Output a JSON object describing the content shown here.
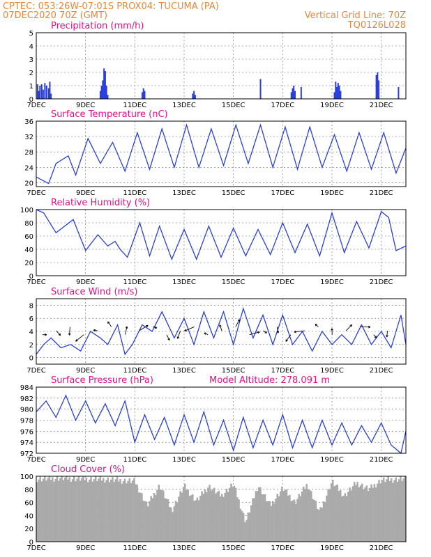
{
  "header": {
    "line1_left": "CPTEC:    053:26W-07:01S   PROX04: TUCUMA (PA)",
    "line2_left": "07DEC2020 70Z (GMT)",
    "line2_right": "Vertical Grid Line: 70Z",
    "line3_right": "TQ0126L028"
  },
  "colors": {
    "series": "#2a3ee0",
    "title": "#e0128a",
    "header": "#e8873a",
    "cloud": "#aaaaaa"
  },
  "x_axis": {
    "tick_labels": [
      "7DEC",
      "9DEC",
      "11DEC",
      "13DEC",
      "15DEC",
      "17DEC",
      "19DEC",
      "21DEC"
    ],
    "tick_days": [
      0,
      2,
      4,
      6,
      8,
      10,
      12,
      14
    ],
    "range_days": [
      0,
      15
    ]
  },
  "chart_data": [
    {
      "type": "bar",
      "title": "Precipitation (mm/h)",
      "ylim": [
        0,
        5
      ],
      "yticks": [
        "0",
        "1",
        "2",
        "3",
        "4",
        "5"
      ],
      "x_unit": "days since 7DEC",
      "bars": [
        [
          0.05,
          1.1
        ],
        [
          0.1,
          0.6
        ],
        [
          0.15,
          1.0
        ],
        [
          0.22,
          1.1
        ],
        [
          0.28,
          0.7
        ],
        [
          0.35,
          1.2
        ],
        [
          0.42,
          1.0
        ],
        [
          0.5,
          0.8
        ],
        [
          0.55,
          1.3
        ],
        [
          0.6,
          0.4
        ],
        [
          2.6,
          0.6
        ],
        [
          2.65,
          1.0
        ],
        [
          2.7,
          1.4
        ],
        [
          2.75,
          2.3
        ],
        [
          2.8,
          2.1
        ],
        [
          2.85,
          1.0
        ],
        [
          2.9,
          0.3
        ],
        [
          4.3,
          0.5
        ],
        [
          4.35,
          0.8
        ],
        [
          4.4,
          0.6
        ],
        [
          6.35,
          0.4
        ],
        [
          6.4,
          0.6
        ],
        [
          6.45,
          0.3
        ],
        [
          9.1,
          1.5
        ],
        [
          10.35,
          0.5
        ],
        [
          10.4,
          0.8
        ],
        [
          10.45,
          1.0
        ],
        [
          10.5,
          0.6
        ],
        [
          10.75,
          0.9
        ],
        [
          12.1,
          0.5
        ],
        [
          12.15,
          1.3
        ],
        [
          12.2,
          0.9
        ],
        [
          12.25,
          1.2
        ],
        [
          12.3,
          1.0
        ],
        [
          12.35,
          0.6
        ],
        [
          13.8,
          1.8
        ],
        [
          13.85,
          2.0
        ],
        [
          13.9,
          1.4
        ],
        [
          14.7,
          0.9
        ]
      ]
    },
    {
      "type": "line",
      "title": "Surface Temperature (nC)",
      "ylim": [
        19,
        36
      ],
      "yticks": [
        20,
        24,
        28,
        32,
        36
      ],
      "x": [
        0,
        0.5,
        0.8,
        1.3,
        1.6,
        2.1,
        2.6,
        3.1,
        3.6,
        4.1,
        4.6,
        5.1,
        5.6,
        6.1,
        6.6,
        7.1,
        7.6,
        8.1,
        8.6,
        9.1,
        9.6,
        10.1,
        10.6,
        11.1,
        11.6,
        12.1,
        12.6,
        13.1,
        13.6,
        14.1,
        14.6,
        15
      ],
      "y": [
        21.5,
        19.8,
        25,
        27,
        22,
        31.5,
        25,
        30.5,
        23,
        33,
        23.5,
        34,
        24,
        35,
        24,
        34,
        24.5,
        35,
        25,
        35,
        24,
        34.5,
        23.5,
        34.5,
        24,
        32.5,
        23,
        33,
        23.5,
        33,
        22.5,
        29
      ]
    },
    {
      "type": "line",
      "title": "Relative Humidity (%)",
      "ylim": [
        0,
        100
      ],
      "yticks": [
        0,
        20,
        40,
        60,
        80,
        100
      ],
      "x": [
        0,
        0.3,
        0.8,
        1.5,
        2,
        2.5,
        2.9,
        3.2,
        3.4,
        3.7,
        4.2,
        4.6,
        5.0,
        5.5,
        6.0,
        6.5,
        7.0,
        7.5,
        8.0,
        8.5,
        9.0,
        9.5,
        10.0,
        10.5,
        11.0,
        11.5,
        12.0,
        12.5,
        13.0,
        13.5,
        14.0,
        14.3,
        14.6,
        15
      ],
      "y": [
        100,
        95,
        65,
        85,
        38,
        62,
        45,
        52,
        40,
        28,
        80,
        30,
        75,
        25,
        70,
        25,
        75,
        28,
        72,
        30,
        70,
        32,
        80,
        35,
        78,
        30,
        95,
        35,
        82,
        42,
        97,
        88,
        38,
        45
      ]
    },
    {
      "type": "line",
      "title": "Surface Wind (m/s)",
      "ylim": [
        -1,
        9
      ],
      "yticks": [
        0,
        2,
        4,
        6,
        8
      ],
      "x": [
        0,
        0.3,
        0.6,
        1,
        1.4,
        1.8,
        2.2,
        2.6,
        2.9,
        3.3,
        3.6,
        3.9,
        4.3,
        4.7,
        5.1,
        5.6,
        6.0,
        6.4,
        6.8,
        7.2,
        7.6,
        8.0,
        8.4,
        8.8,
        9.2,
        9.6,
        10.0,
        10.4,
        10.8,
        11.2,
        11.6,
        12.0,
        12.4,
        12.8,
        13.2,
        13.6,
        14.0,
        14.4,
        14.8,
        15
      ],
      "y": [
        0.5,
        2,
        3,
        1.5,
        2,
        1,
        4,
        3,
        2,
        5,
        0.5,
        2,
        5,
        4,
        7,
        3,
        6,
        2,
        7,
        3,
        7,
        2,
        7.5,
        3,
        6.5,
        2,
        6.5,
        2,
        4,
        1,
        4,
        2,
        3.5,
        2,
        5,
        2,
        4,
        1.5,
        6.5,
        2
      ],
      "vectors_note": "wind direction arrows"
    },
    {
      "type": "line",
      "title": "Surface Pressure (hPa)",
      "annotation": "Model Altitude: 278.091  m",
      "ylim": [
        972,
        984
      ],
      "yticks": [
        972,
        974,
        976,
        978,
        980,
        982,
        984
      ],
      "x": [
        0,
        0.4,
        0.8,
        1.2,
        1.6,
        2.0,
        2.4,
        2.8,
        3.2,
        3.6,
        4.0,
        4.4,
        4.8,
        5.2,
        5.6,
        6.0,
        6.4,
        6.8,
        7.2,
        7.6,
        8.0,
        8.4,
        8.8,
        9.2,
        9.6,
        10.0,
        10.4,
        10.8,
        11.2,
        11.6,
        12.0,
        12.4,
        12.8,
        13.2,
        13.6,
        14.0,
        14.4,
        14.8,
        15
      ],
      "y": [
        979.5,
        981.5,
        978.5,
        982.5,
        978,
        981.5,
        977.5,
        981,
        977,
        981.5,
        974,
        979,
        974.5,
        978.5,
        973.5,
        979,
        974,
        979.5,
        973.5,
        978,
        972.5,
        978.5,
        973,
        978,
        973.5,
        979,
        973,
        978,
        973,
        978,
        973.5,
        977.5,
        973.5,
        977,
        974,
        977.5,
        973.5,
        972,
        976
      ]
    },
    {
      "type": "bar",
      "title": "Cloud Cover (%)",
      "ylim": [
        0,
        100
      ],
      "yticks": [
        0,
        20,
        40,
        60,
        80,
        100
      ],
      "x_unit": "days since 7DEC",
      "bars_profile": [
        [
          0,
          96
        ],
        [
          1,
          97
        ],
        [
          2,
          96
        ],
        [
          3,
          95
        ],
        [
          4,
          92
        ],
        [
          4.5,
          55
        ],
        [
          5,
          86
        ],
        [
          5.5,
          48
        ],
        [
          6,
          85
        ],
        [
          6.5,
          62
        ],
        [
          7,
          85
        ],
        [
          7.5,
          70
        ],
        [
          8,
          88
        ],
        [
          8.5,
          30
        ],
        [
          9,
          86
        ],
        [
          9.5,
          55
        ],
        [
          10,
          82
        ],
        [
          10.5,
          60
        ],
        [
          11,
          88
        ],
        [
          11.5,
          45
        ],
        [
          12,
          92
        ],
        [
          12.5,
          70
        ],
        [
          13,
          90
        ],
        [
          13.5,
          80
        ],
        [
          14,
          94
        ],
        [
          15,
          96
        ]
      ]
    }
  ]
}
